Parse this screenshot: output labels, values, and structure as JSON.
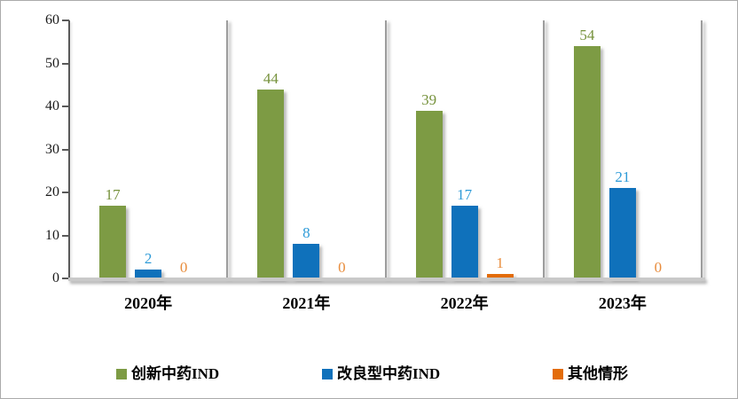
{
  "chart": {
    "background": "#FFFFFF",
    "border_color": "#ABABAB",
    "axis_color": "#595959",
    "gridline_color": "#9D9D9D",
    "baseline_color": "#C9C9C9"
  },
  "chart_data": {
    "type": "bar",
    "title": "",
    "xlabel": "",
    "ylabel": "",
    "categories": [
      "2020年",
      "2021年",
      "2022年",
      "2023年"
    ],
    "series": [
      {
        "name": "创新中药IND",
        "values": [
          17,
          44,
          39,
          54
        ],
        "color": "#7D9B44",
        "label_color": "#76923C"
      },
      {
        "name": "改良型中药IND",
        "values": [
          2,
          8,
          17,
          21
        ],
        "color": "#0F71BB",
        "label_color": "#2E9BD8"
      },
      {
        "name": "其他情形",
        "values": [
          0,
          0,
          1,
          0
        ],
        "color": "#E36C09",
        "label_color": "#E88C3C"
      }
    ],
    "yticks": [
      0,
      10,
      20,
      30,
      40,
      50,
      60
    ],
    "ylim": [
      0,
      60
    ],
    "grid": "vertical-category-separators",
    "legend_position": "bottom"
  }
}
